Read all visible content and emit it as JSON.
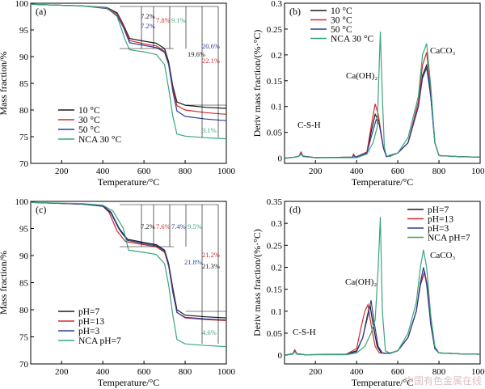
{
  "watermark": "中国有色金属在线",
  "chart_data": [
    {
      "type": "line",
      "panel": "(a)",
      "xlabel": "Temperature/°C",
      "ylabel": "Mass fraction/%",
      "xlim": [
        50,
        1000
      ],
      "ylim": [
        70,
        100
      ],
      "xticks": [
        200,
        400,
        600,
        800,
        1000
      ],
      "yticks": [
        70,
        75,
        80,
        85,
        90,
        95,
        100
      ],
      "legend_position": "bottom-left",
      "series": [
        {
          "name": "10 °C",
          "color": "#1a1a1a",
          "x": [
            50,
            300,
            420,
            470,
            500,
            530,
            600,
            660,
            700,
            720,
            740,
            760,
            800,
            900,
            1000
          ],
          "y": [
            99.8,
            99.5,
            99.2,
            98.2,
            96,
            93.4,
            92.9,
            92.5,
            91.5,
            89,
            84.5,
            81.5,
            80.9,
            80.5,
            80.3
          ]
        },
        {
          "name": "30 °C",
          "color": "#d22b2b",
          "x": [
            50,
            300,
            420,
            470,
            500,
            530,
            600,
            660,
            700,
            720,
            740,
            760,
            800,
            900,
            1000
          ],
          "y": [
            99.8,
            99.5,
            99.1,
            98,
            95.8,
            93,
            92.4,
            92,
            91,
            88.5,
            84,
            80.8,
            80,
            79.5,
            79.2
          ]
        },
        {
          "name": "50 °C",
          "color": "#2a3f9a",
          "x": [
            50,
            300,
            420,
            470,
            500,
            530,
            600,
            660,
            700,
            720,
            740,
            760,
            800,
            900,
            1000
          ],
          "y": [
            99.8,
            99.5,
            99,
            97.7,
            95.5,
            92.6,
            92.1,
            91.7,
            90.8,
            88.5,
            83.5,
            79.8,
            78.8,
            78.3,
            78
          ]
        },
        {
          "name": "NCA 30 °C",
          "color": "#3aa57a",
          "x": [
            50,
            300,
            420,
            470,
            510,
            530,
            560,
            600,
            660,
            700,
            720,
            740,
            760,
            800,
            900,
            1000
          ],
          "y": [
            99.8,
            99.5,
            99.1,
            97.5,
            93,
            91.3,
            91.1,
            90.9,
            90.4,
            88.5,
            84,
            78.8,
            75.5,
            75.1,
            74.8,
            74.6
          ]
        }
      ],
      "annotations": [
        {
          "text": "7.2%",
          "color": "#1a1a1a"
        },
        {
          "text": "7.8%",
          "color": "#d22b2b"
        },
        {
          "text": "9.1%",
          "color": "#3aa57a"
        },
        {
          "text": "7.2%",
          "color": "#2a3f9a"
        },
        {
          "text": "19.6%",
          "color": "#1a1a1a"
        },
        {
          "text": "20.6%",
          "color": "#2a3f9a"
        },
        {
          "text": "22.1%",
          "color": "#d22b2b"
        },
        {
          "text": "3.1%",
          "color": "#3aa57a"
        }
      ]
    },
    {
      "type": "line",
      "panel": "(b)",
      "xlabel": "Temperature/°C",
      "ylabel": "Deriv mass fraction/(%·°C)",
      "xlim": [
        50,
        1000
      ],
      "ylim": [
        -0.01,
        0.3
      ],
      "xticks": [
        200,
        400,
        600,
        800,
        1000
      ],
      "yticks": [
        0,
        0.05,
        0.1,
        0.15,
        0.2,
        0.25,
        0.3
      ],
      "legend_position": "top-left",
      "series": [
        {
          "name": "10 °C",
          "color": "#1a1a1a",
          "x": [
            50,
            100,
            120,
            130,
            140,
            200,
            380,
            385,
            395,
            450,
            470,
            490,
            510,
            530,
            545,
            600,
            650,
            700,
            720,
            740,
            760,
            780,
            800,
            900,
            1000
          ],
          "y": [
            0,
            0.002,
            0.004,
            0.01,
            0.004,
            0.001,
            0.002,
            0.006,
            0.002,
            0.01,
            0.05,
            0.085,
            0.07,
            0.02,
            0.003,
            0.01,
            0.03,
            0.1,
            0.16,
            0.18,
            0.12,
            0.03,
            0.005,
            0.003,
            0.002
          ]
        },
        {
          "name": "30 °C",
          "color": "#d22b2b",
          "x": [
            50,
            100,
            120,
            130,
            140,
            200,
            380,
            385,
            395,
            450,
            470,
            490,
            505,
            530,
            545,
            600,
            650,
            700,
            720,
            740,
            760,
            780,
            800,
            900,
            1000
          ],
          "y": [
            0,
            0.002,
            0.004,
            0.012,
            0.004,
            0.001,
            0.002,
            0.008,
            0.002,
            0.012,
            0.06,
            0.105,
            0.085,
            0.02,
            0.003,
            0.01,
            0.03,
            0.11,
            0.18,
            0.205,
            0.13,
            0.03,
            0.005,
            0.003,
            0.002
          ]
        },
        {
          "name": "50 °C",
          "color": "#2a3f9a",
          "x": [
            50,
            100,
            120,
            130,
            140,
            200,
            380,
            385,
            395,
            450,
            470,
            495,
            510,
            530,
            545,
            600,
            650,
            700,
            720,
            740,
            760,
            780,
            800,
            900,
            1000
          ],
          "y": [
            0,
            0.002,
            0.004,
            0.009,
            0.004,
            0.001,
            0.002,
            0.005,
            0.002,
            0.01,
            0.04,
            0.075,
            0.065,
            0.02,
            0.003,
            0.01,
            0.03,
            0.1,
            0.155,
            0.175,
            0.12,
            0.03,
            0.005,
            0.003,
            0.002
          ]
        },
        {
          "name": "NCA 30 °C",
          "color": "#3aa57a",
          "x": [
            50,
            100,
            120,
            130,
            140,
            200,
            400,
            450,
            480,
            500,
            515,
            525,
            535,
            545,
            560,
            600,
            650,
            700,
            720,
            740,
            760,
            780,
            800,
            900,
            1000
          ],
          "y": [
            0,
            0.002,
            0.004,
            0.008,
            0.003,
            0.001,
            0.001,
            0.008,
            0.03,
            0.06,
            0.245,
            0.12,
            0.02,
            0.005,
            0.003,
            0.01,
            0.04,
            0.12,
            0.2,
            0.222,
            0.14,
            0.03,
            0.005,
            0.003,
            0.002
          ]
        }
      ],
      "annotations": [
        {
          "text": "C-S-H"
        },
        {
          "text": "Ca(OH)₂"
        },
        {
          "text": "CaCO₃"
        }
      ]
    },
    {
      "type": "line",
      "panel": "(c)",
      "xlabel": "Temperature/°C",
      "ylabel": "Mass fraction/%",
      "xlim": [
        50,
        1000
      ],
      "ylim": [
        70,
        100
      ],
      "xticks": [
        200,
        400,
        600,
        800,
        1000
      ],
      "yticks": [
        70,
        75,
        80,
        85,
        90,
        95,
        100
      ],
      "legend_position": "bottom-left",
      "series": [
        {
          "name": "pH=7",
          "color": "#1a1a1a",
          "x": [
            50,
            300,
            400,
            440,
            480,
            520,
            600,
            660,
            700,
            720,
            740,
            760,
            800,
            900,
            1000
          ],
          "y": [
            99.8,
            99.5,
            99.2,
            98,
            95,
            93,
            92.4,
            92,
            91,
            88.5,
            84,
            80,
            79,
            78.7,
            78.5
          ]
        },
        {
          "name": "pH=13",
          "color": "#d22b2b",
          "x": [
            50,
            300,
            400,
            430,
            470,
            510,
            600,
            660,
            700,
            720,
            740,
            760,
            800,
            900,
            1000
          ],
          "y": [
            99.8,
            99.5,
            99.1,
            98,
            94.5,
            92.6,
            92,
            91.6,
            90.6,
            88,
            83.5,
            79.5,
            78.5,
            78.2,
            78
          ]
        },
        {
          "name": "pH=3",
          "color": "#2a3f9a",
          "x": [
            50,
            300,
            400,
            440,
            480,
            520,
            600,
            660,
            700,
            720,
            740,
            760,
            800,
            900,
            1000
          ],
          "y": [
            99.8,
            99.5,
            99.1,
            97.8,
            94.8,
            92.8,
            92.2,
            91.8,
            90.8,
            88.2,
            83.2,
            79.5,
            78.6,
            78.3,
            78.1
          ]
        },
        {
          "name": "NCA pH=7",
          "color": "#3aa57a",
          "x": [
            50,
            300,
            400,
            450,
            500,
            525,
            560,
            600,
            660,
            700,
            720,
            740,
            760,
            800,
            900,
            1000
          ],
          "y": [
            99.8,
            99.6,
            99.3,
            98.2,
            95,
            91,
            90.8,
            90.6,
            90.2,
            88.5,
            84.5,
            79,
            74.5,
            73.7,
            73.4,
            73.2
          ]
        }
      ],
      "annotations": [
        {
          "text": "7.2%",
          "color": "#1a1a1a"
        },
        {
          "text": "7.6%",
          "color": "#d22b2b"
        },
        {
          "text": "7.4%",
          "color": "#2a3f9a"
        },
        {
          "text": "9.5%",
          "color": "#3aa57a"
        },
        {
          "text": "21.2%",
          "color": "#d22b2b"
        },
        {
          "text": "21.8%",
          "color": "#2a3f9a"
        },
        {
          "text": "21.3%",
          "color": "#1a1a1a"
        },
        {
          "text": "4.6%",
          "color": "#3aa57a"
        }
      ]
    },
    {
      "type": "line",
      "panel": "(d)",
      "xlabel": "Temperature/°C",
      "ylabel": "Deriv mass fraction/(%·°C)",
      "xlim": [
        50,
        1000
      ],
      "ylim": [
        -0.02,
        0.35
      ],
      "xticks": [
        200,
        400,
        600,
        800,
        1000
      ],
      "yticks": [
        0,
        0.05,
        0.1,
        0.15,
        0.2,
        0.25,
        0.3,
        0.35
      ],
      "legend_position": "top-right",
      "series": [
        {
          "name": "pH=7",
          "color": "#1a1a1a",
          "x": [
            50,
            90,
            100,
            110,
            150,
            350,
            400,
            430,
            450,
            465,
            480,
            500,
            520,
            560,
            600,
            650,
            690,
            710,
            730,
            745,
            760,
            780,
            800,
            900,
            1000
          ],
          "y": [
            0,
            0.003,
            0.01,
            0.003,
            0.001,
            0.002,
            0.01,
            0.04,
            0.085,
            0.115,
            0.07,
            0.02,
            0.005,
            0.004,
            0.01,
            0.04,
            0.1,
            0.16,
            0.19,
            0.15,
            0.07,
            0.015,
            0.005,
            0.003,
            0.002
          ]
        },
        {
          "name": "pH=13",
          "color": "#d22b2b",
          "x": [
            50,
            90,
            100,
            110,
            150,
            350,
            400,
            420,
            440,
            455,
            470,
            490,
            510,
            560,
            600,
            650,
            690,
            710,
            730,
            745,
            760,
            780,
            800,
            900,
            1000
          ],
          "y": [
            0,
            0.003,
            0.012,
            0.003,
            0.001,
            0.002,
            0.015,
            0.06,
            0.1,
            0.115,
            0.07,
            0.02,
            0.005,
            0.004,
            0.01,
            0.04,
            0.1,
            0.165,
            0.19,
            0.155,
            0.07,
            0.015,
            0.005,
            0.003,
            0.002
          ]
        },
        {
          "name": "pH=3",
          "color": "#2a3f9a",
          "x": [
            50,
            90,
            100,
            110,
            150,
            350,
            400,
            430,
            455,
            470,
            485,
            505,
            525,
            560,
            600,
            650,
            690,
            710,
            725,
            740,
            760,
            780,
            800,
            900,
            1000
          ],
          "y": [
            0,
            0.003,
            0.009,
            0.003,
            0.001,
            0.002,
            0.008,
            0.04,
            0.09,
            0.125,
            0.075,
            0.02,
            0.005,
            0.004,
            0.01,
            0.04,
            0.1,
            0.165,
            0.2,
            0.16,
            0.07,
            0.015,
            0.005,
            0.003,
            0.002
          ]
        },
        {
          "name": "NCA pH=7",
          "color": "#3aa57a",
          "x": [
            50,
            90,
            100,
            110,
            150,
            350,
            400,
            440,
            470,
            490,
            505,
            515,
            525,
            540,
            560,
            600,
            650,
            690,
            710,
            725,
            740,
            760,
            780,
            800,
            900,
            1000
          ],
          "y": [
            0,
            0.002,
            0.008,
            0.002,
            0.001,
            0.001,
            0.005,
            0.02,
            0.05,
            0.08,
            0.2,
            0.315,
            0.1,
            0.01,
            0.005,
            0.01,
            0.05,
            0.12,
            0.2,
            0.24,
            0.2,
            0.09,
            0.02,
            0.005,
            0.003,
            0.002
          ]
        }
      ],
      "annotations": [
        {
          "text": "C-S-H"
        },
        {
          "text": "Ca(OH)₂"
        },
        {
          "text": "CaCO₃"
        }
      ]
    }
  ]
}
